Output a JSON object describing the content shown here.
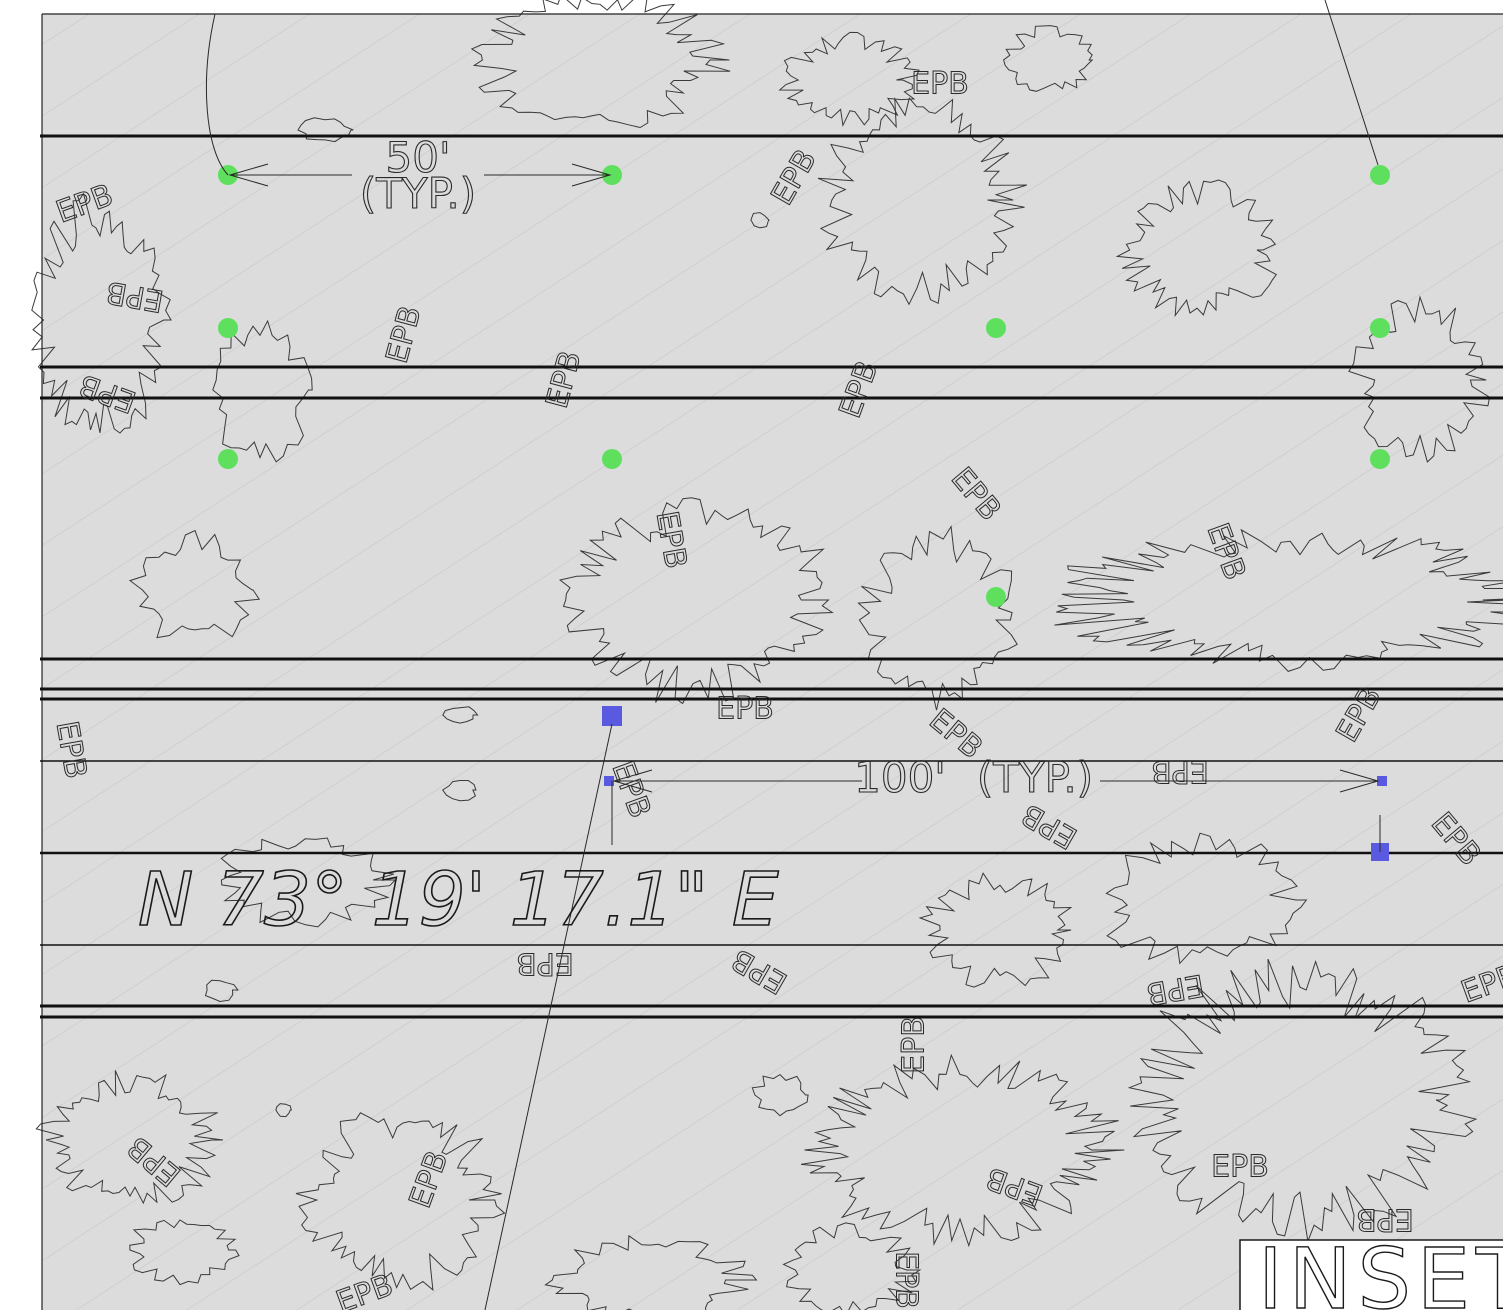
{
  "dimensions": [
    {
      "value": "50'",
      "note": "(TYP.)"
    },
    {
      "value": "100'",
      "note": "(TYP.)"
    }
  ],
  "bearing": "N 73° 19' 17.1\" E",
  "inset_label": "INSET",
  "area_labels": [
    "EPB",
    "EPB",
    "EPB",
    "EPB",
    "EPB",
    "EPB",
    "EPB",
    "EPB",
    "EPB",
    "EPB",
    "EPB",
    "EPB",
    "EPB",
    "EPB",
    "EPB",
    "EPB",
    "EPB",
    "EPB",
    "EPB",
    "EPB",
    "EPB",
    "EPB",
    "EPB",
    "EPB",
    "EPB",
    "EPB",
    "EPB",
    "EPB",
    "EPB",
    "EPB",
    "EPB"
  ]
}
